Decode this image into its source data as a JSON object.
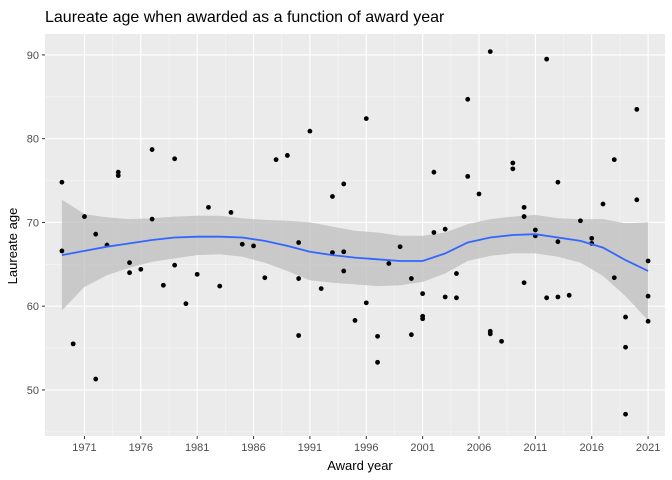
{
  "chart_data": {
    "type": "scatter",
    "title": "Laureate age when awarded as a function of award year",
    "xlabel": "Award year",
    "ylabel": "Laureate age",
    "xlim": [
      1967.5,
      2022.5
    ],
    "ylim": [
      44.5,
      92.5
    ],
    "xticks": [
      1971,
      1976,
      1981,
      1986,
      1991,
      1996,
      2001,
      2006,
      2011,
      2016,
      2021
    ],
    "yticks": [
      50,
      60,
      70,
      80,
      90
    ],
    "grid": true,
    "colors": {
      "panel": "#ebebeb",
      "grid_major": "#ffffff",
      "points": "#000000",
      "smooth_line": "#3366ff",
      "ribbon": "#bdbdbd"
    },
    "points": [
      {
        "x": 1969,
        "y": 74.8
      },
      {
        "x": 1969,
        "y": 66.6
      },
      {
        "x": 1970,
        "y": 55.5
      },
      {
        "x": 1971,
        "y": 70.7
      },
      {
        "x": 1972,
        "y": 68.6
      },
      {
        "x": 1972,
        "y": 51.3
      },
      {
        "x": 1973,
        "y": 67.3
      },
      {
        "x": 1974,
        "y": 76.0
      },
      {
        "x": 1974,
        "y": 75.6
      },
      {
        "x": 1975,
        "y": 65.2
      },
      {
        "x": 1975,
        "y": 64.0
      },
      {
        "x": 1976,
        "y": 64.4
      },
      {
        "x": 1977,
        "y": 78.7
      },
      {
        "x": 1977,
        "y": 70.4
      },
      {
        "x": 1978,
        "y": 62.5
      },
      {
        "x": 1979,
        "y": 77.6
      },
      {
        "x": 1979,
        "y": 64.9
      },
      {
        "x": 1980,
        "y": 60.3
      },
      {
        "x": 1981,
        "y": 63.8
      },
      {
        "x": 1982,
        "y": 71.8
      },
      {
        "x": 1983,
        "y": 62.4
      },
      {
        "x": 1984,
        "y": 71.2
      },
      {
        "x": 1985,
        "y": 67.4
      },
      {
        "x": 1986,
        "y": 67.2
      },
      {
        "x": 1987,
        "y": 63.4
      },
      {
        "x": 1988,
        "y": 77.5
      },
      {
        "x": 1989,
        "y": 78.0
      },
      {
        "x": 1990,
        "y": 67.6
      },
      {
        "x": 1990,
        "y": 63.3
      },
      {
        "x": 1990,
        "y": 56.5
      },
      {
        "x": 1991,
        "y": 80.9
      },
      {
        "x": 1992,
        "y": 62.1
      },
      {
        "x": 1993,
        "y": 73.1
      },
      {
        "x": 1993,
        "y": 66.4
      },
      {
        "x": 1994,
        "y": 74.6
      },
      {
        "x": 1994,
        "y": 66.5
      },
      {
        "x": 1994,
        "y": 64.2
      },
      {
        "x": 1995,
        "y": 58.3
      },
      {
        "x": 1996,
        "y": 82.4
      },
      {
        "x": 1996,
        "y": 60.4
      },
      {
        "x": 1997,
        "y": 56.4
      },
      {
        "x": 1997,
        "y": 53.3
      },
      {
        "x": 1998,
        "y": 65.1
      },
      {
        "x": 1999,
        "y": 67.1
      },
      {
        "x": 2000,
        "y": 63.3
      },
      {
        "x": 2000,
        "y": 56.6
      },
      {
        "x": 2001,
        "y": 61.5
      },
      {
        "x": 2001,
        "y": 58.8
      },
      {
        "x": 2001,
        "y": 58.5
      },
      {
        "x": 2002,
        "y": 76.0
      },
      {
        "x": 2002,
        "y": 68.8
      },
      {
        "x": 2003,
        "y": 69.2
      },
      {
        "x": 2003,
        "y": 61.1
      },
      {
        "x": 2004,
        "y": 63.9
      },
      {
        "x": 2004,
        "y": 61.0
      },
      {
        "x": 2005,
        "y": 84.7
      },
      {
        "x": 2005,
        "y": 75.5
      },
      {
        "x": 2006,
        "y": 73.4
      },
      {
        "x": 2007,
        "y": 90.4
      },
      {
        "x": 2007,
        "y": 57.0
      },
      {
        "x": 2007,
        "y": 56.7
      },
      {
        "x": 2008,
        "y": 55.8
      },
      {
        "x": 2009,
        "y": 77.1
      },
      {
        "x": 2009,
        "y": 76.4
      },
      {
        "x": 2010,
        "y": 71.8
      },
      {
        "x": 2010,
        "y": 70.7
      },
      {
        "x": 2010,
        "y": 62.8
      },
      {
        "x": 2011,
        "y": 69.1
      },
      {
        "x": 2011,
        "y": 68.4
      },
      {
        "x": 2012,
        "y": 89.5
      },
      {
        "x": 2012,
        "y": 61.0
      },
      {
        "x": 2013,
        "y": 74.8
      },
      {
        "x": 2013,
        "y": 67.7
      },
      {
        "x": 2013,
        "y": 61.1
      },
      {
        "x": 2014,
        "y": 61.3
      },
      {
        "x": 2015,
        "y": 70.2
      },
      {
        "x": 2016,
        "y": 68.1
      },
      {
        "x": 2016,
        "y": 67.5
      },
      {
        "x": 2017,
        "y": 72.2
      },
      {
        "x": 2018,
        "y": 77.5
      },
      {
        "x": 2018,
        "y": 63.4
      },
      {
        "x": 2019,
        "y": 58.7
      },
      {
        "x": 2019,
        "y": 55.1
      },
      {
        "x": 2019,
        "y": 47.1
      },
      {
        "x": 2020,
        "y": 83.5
      },
      {
        "x": 2020,
        "y": 72.7
      },
      {
        "x": 2021,
        "y": 65.4
      },
      {
        "x": 2021,
        "y": 61.2
      },
      {
        "x": 2021,
        "y": 58.2
      }
    ],
    "smooth": {
      "x": [
        1969,
        1971,
        1973,
        1975,
        1977,
        1979,
        1981,
        1983,
        1985,
        1987,
        1989,
        1991,
        1993,
        1995,
        1997,
        1999,
        2001,
        2003,
        2005,
        2007,
        2009,
        2011,
        2013,
        2015,
        2017,
        2019,
        2021
      ],
      "y": [
        66.1,
        66.6,
        67.1,
        67.5,
        67.9,
        68.2,
        68.3,
        68.3,
        68.2,
        67.8,
        67.2,
        66.5,
        66.1,
        65.8,
        65.6,
        65.4,
        65.4,
        66.3,
        67.6,
        68.2,
        68.5,
        68.6,
        68.2,
        67.8,
        67.0,
        65.5,
        64.2
      ],
      "lower": [
        59.5,
        62.3,
        63.7,
        64.6,
        65.3,
        65.7,
        66.1,
        66.2,
        65.9,
        65.2,
        64.2,
        63.1,
        62.8,
        62.6,
        62.4,
        62.5,
        62.9,
        63.9,
        65.4,
        66.0,
        66.3,
        66.3,
        65.9,
        65.2,
        63.6,
        61.2,
        58.3
      ],
      "upper": [
        72.7,
        71.0,
        70.6,
        70.4,
        70.5,
        70.7,
        70.8,
        70.8,
        70.5,
        70.3,
        70.2,
        70.0,
        69.5,
        69.0,
        68.8,
        68.4,
        68.4,
        68.8,
        69.8,
        70.4,
        70.7,
        70.9,
        70.5,
        70.4,
        70.4,
        69.9,
        70.0
      ]
    }
  }
}
